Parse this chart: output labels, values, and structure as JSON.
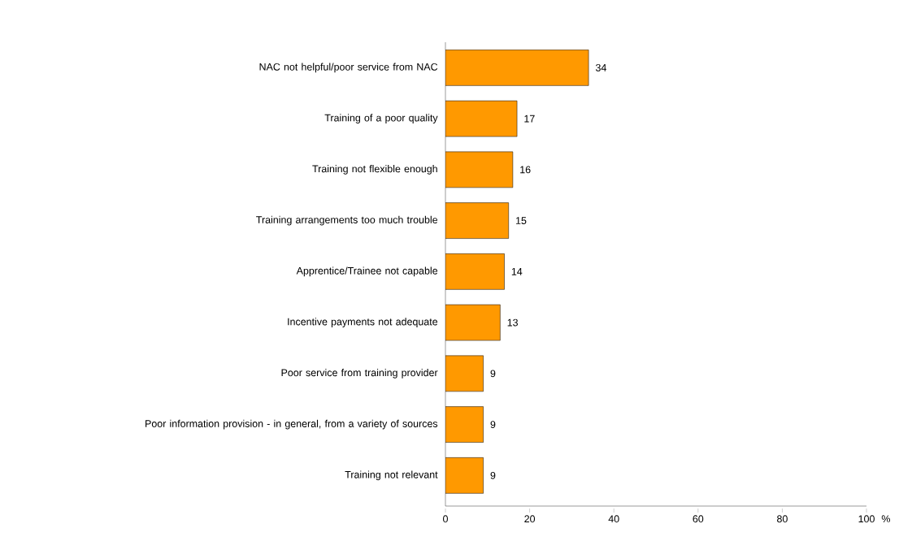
{
  "chart_data": {
    "type": "bar",
    "orientation": "horizontal",
    "xlabel": "%",
    "categories": [
      "NAC not helpful/poor service from NAC",
      "Training of a poor quality",
      "Training not flexible enough",
      "Training arrangements too much trouble",
      "Apprentice/Trainee not capable",
      "Incentive payments not adequate",
      "Poor service from training provider",
      "Poor information provision - in general, from a variety of sources",
      "Training not relevant"
    ],
    "values": [
      34,
      17,
      16,
      15,
      14,
      13,
      9,
      9,
      9
    ],
    "color": "#ff9900",
    "xlim": [
      0,
      100
    ],
    "xticks": [
      0,
      20,
      40,
      60,
      80,
      100
    ],
    "data_labels": true,
    "grid": false
  }
}
